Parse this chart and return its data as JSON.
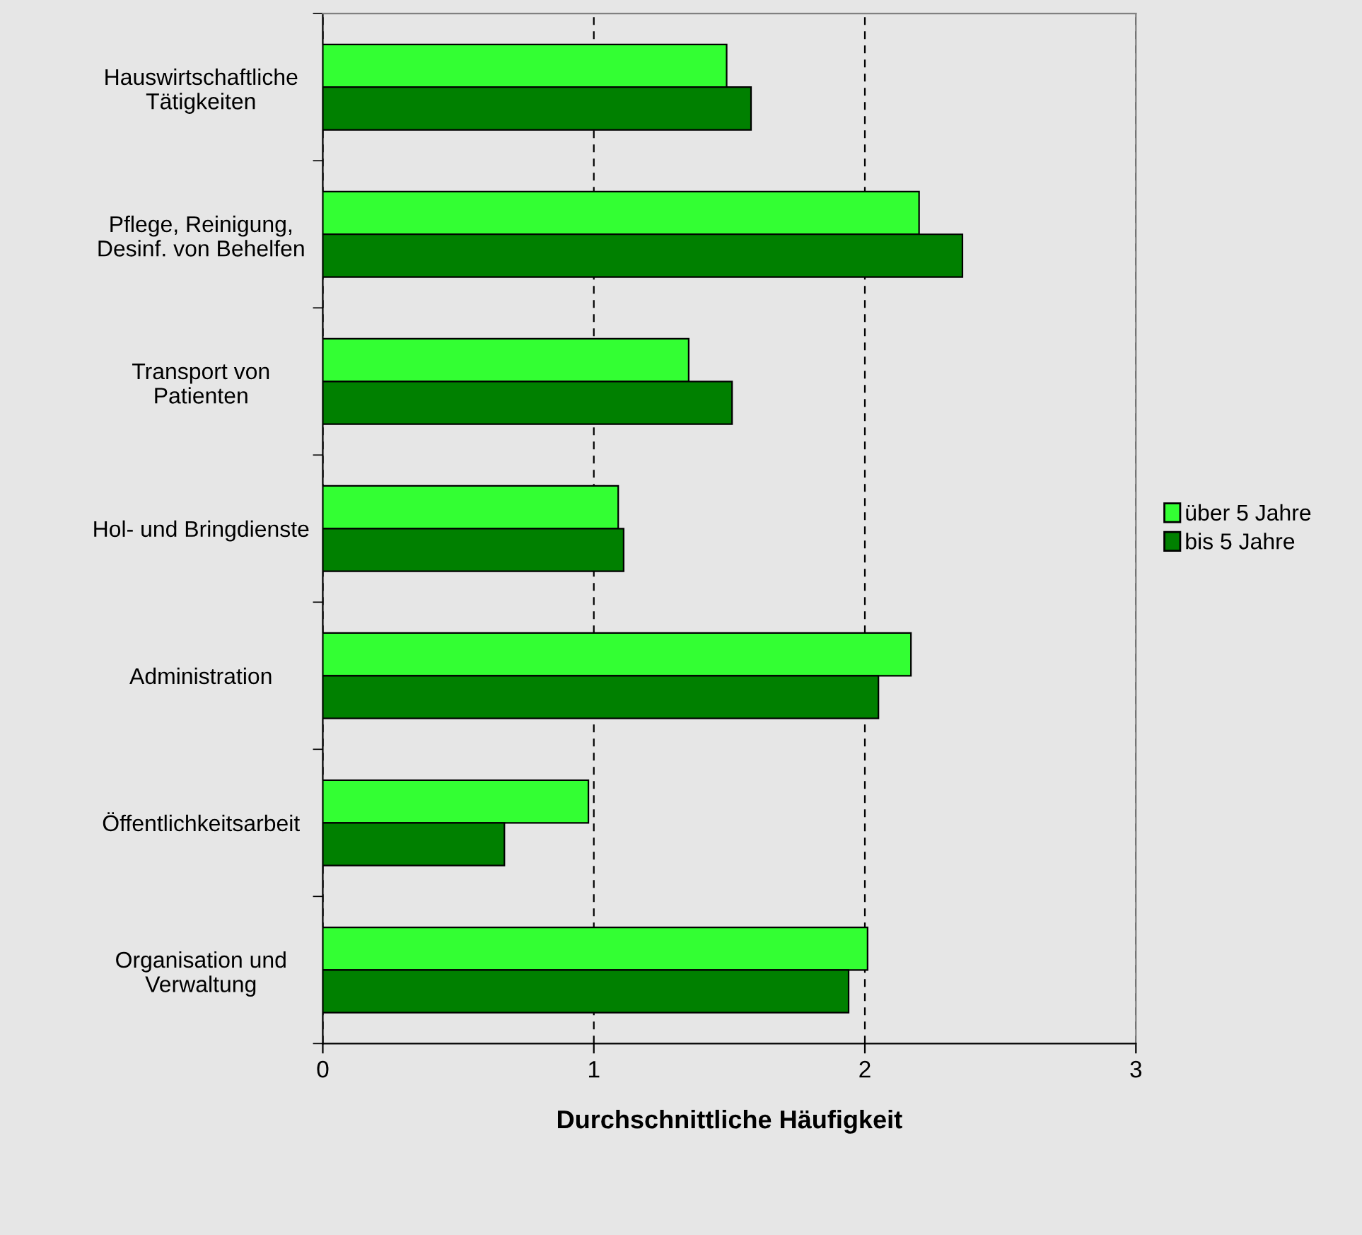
{
  "chart_data": {
    "type": "bar",
    "orientation": "horizontal",
    "xlabel": "Durchschnittliche Häufigkeit",
    "categories": [
      "Hauswirtschaftliche\nTätigkeiten",
      "Pflege, Reinigung,\nDesinf. von Behelfen",
      "Transport von\nPatienten",
      "Hol- und Bringdienste",
      "Administration",
      "Öffentlichkeitsarbeit",
      "Organisation und\nVerwaltung"
    ],
    "series": [
      {
        "name": "über 5 Jahre",
        "color": "#33ff33",
        "values": [
          1.49,
          2.2,
          1.35,
          1.09,
          2.17,
          0.98,
          2.01
        ]
      },
      {
        "name": "bis 5 Jahre",
        "color": "#008000",
        "values": [
          1.58,
          2.36,
          1.51,
          1.11,
          2.05,
          0.67,
          1.94
        ]
      }
    ],
    "xlim": [
      0,
      3
    ],
    "xticks": [
      0,
      1,
      2,
      3
    ],
    "grid": "x",
    "legend": "right"
  }
}
